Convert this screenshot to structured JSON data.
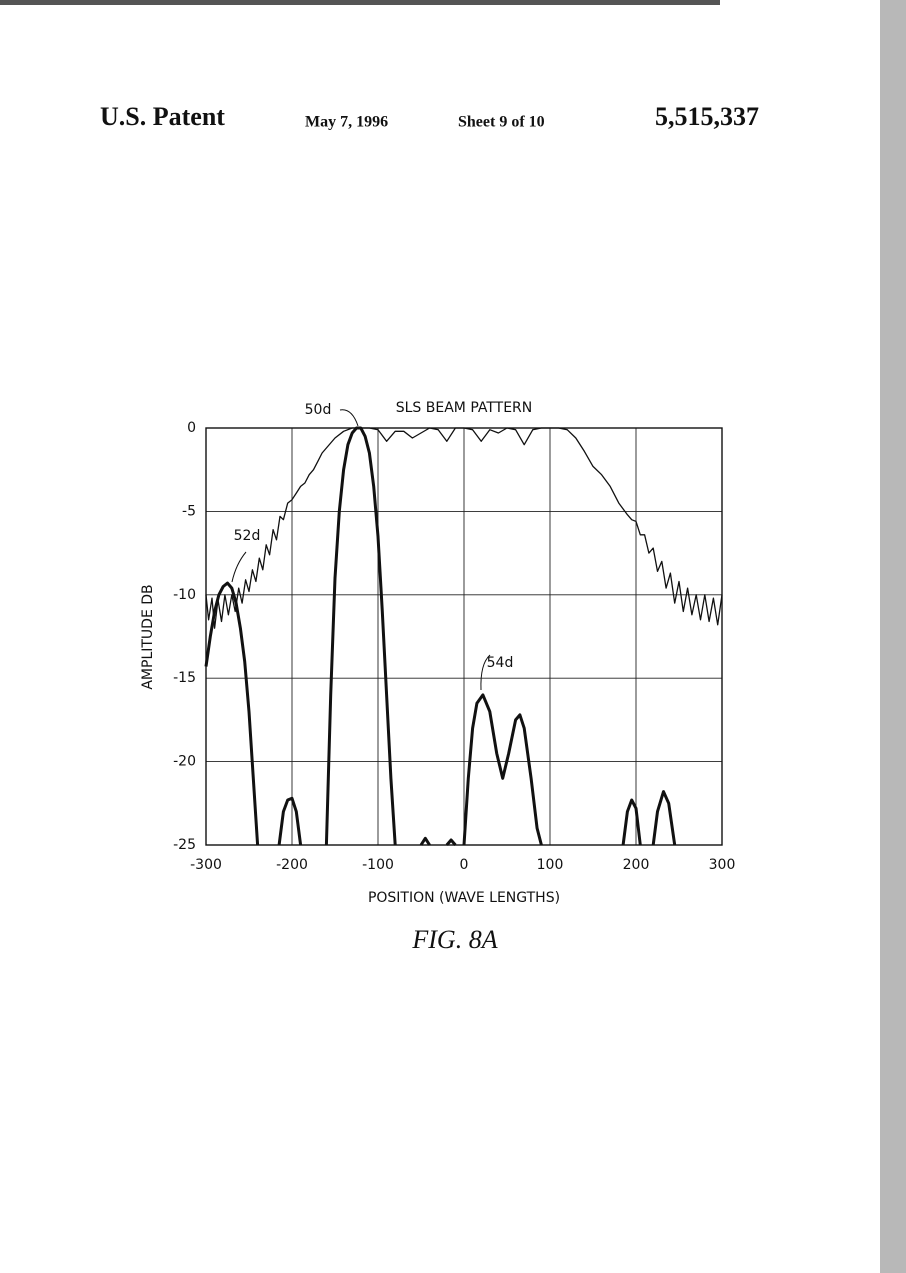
{
  "header": {
    "left": "U.S. Patent",
    "date": "May 7, 1996",
    "sheet": "Sheet 9 of 10",
    "number": "5,515,337"
  },
  "caption": "FIG. 8A",
  "chart_data": {
    "type": "line",
    "title": "SLS BEAM PATTERN",
    "xlabel": "POSITION (WAVE LENGTHS)",
    "ylabel": "AMPLITUDE DB",
    "xlim": [
      -300,
      300
    ],
    "ylim": [
      -25,
      0
    ],
    "xticks": [
      -300,
      -200,
      -100,
      0,
      100,
      200,
      300
    ],
    "yticks": [
      0,
      -5,
      -10,
      -15,
      -20,
      -25
    ],
    "grid": true,
    "annotations": [
      "50d",
      "52d",
      "54d"
    ],
    "series": [
      {
        "color": "#111111",
        "width": 1.3,
        "x": [
          -300,
          -297,
          -293,
          -290,
          -286,
          -282,
          -278,
          -274,
          -270,
          -266,
          -262,
          -258,
          -254,
          -250,
          -246,
          -242,
          -238,
          -234,
          -230,
          -226,
          -222,
          -218,
          -214,
          -210,
          -205,
          -200,
          -195,
          -190,
          -185,
          -180,
          -175,
          -170,
          -165,
          -160,
          -155,
          -150,
          -140,
          -130,
          -110,
          -100,
          -90,
          -80,
          -70,
          -60,
          -50,
          -40,
          -30,
          -20,
          -10,
          0,
          10,
          20,
          30,
          40,
          50,
          60,
          70,
          80,
          90,
          110,
          120,
          130,
          140,
          150,
          160,
          170,
          180,
          190,
          195,
          200,
          205,
          210,
          215,
          220,
          225,
          230,
          235,
          240,
          245,
          250,
          255,
          260,
          265,
          270,
          275,
          280,
          285,
          290,
          295,
          300
        ],
        "values": [
          -10,
          -11.5,
          -10.2,
          -12,
          -10.3,
          -11.6,
          -10,
          -11.2,
          -10,
          -11,
          -9.6,
          -10.5,
          -9.1,
          -9.8,
          -8.5,
          -9.2,
          -7.8,
          -8.5,
          -7,
          -7.6,
          -6.1,
          -6.7,
          -5.3,
          -5.5,
          -4.5,
          -4.3,
          -3.9,
          -3.5,
          -3.3,
          -2.8,
          -2.5,
          -2,
          -1.5,
          -1.2,
          -0.9,
          -0.6,
          -0.2,
          0,
          0,
          -0.1,
          -0.8,
          -0.2,
          -0.2,
          -0.6,
          -0.3,
          0,
          -0.1,
          -0.8,
          0,
          0,
          -0.1,
          -0.8,
          -0.1,
          -0.3,
          0,
          -0.1,
          -1,
          -0.1,
          0,
          0,
          -0.1,
          -0.6,
          -1.4,
          -2.3,
          -2.8,
          -3.5,
          -4.5,
          -5.2,
          -5.5,
          -5.6,
          -6.4,
          -6.4,
          -7.5,
          -7.2,
          -8.6,
          -8,
          -9.6,
          -8.7,
          -10.5,
          -9.2,
          -11,
          -9.6,
          -11.2,
          -10,
          -11.5,
          -10,
          -11.6,
          -10.2,
          -11.8,
          -10
        ]
      },
      {
        "color": "#111111",
        "width": 3,
        "x": [
          -300,
          -295,
          -290,
          -285,
          -280,
          -275,
          -270,
          -265,
          -260,
          -255,
          -250,
          -245,
          -240,
          -227,
          -215,
          -210,
          -205,
          -200,
          -195,
          -190,
          -175,
          -160,
          -155,
          -150,
          -145,
          -140,
          -135,
          -130,
          -125,
          -120,
          -115,
          -110,
          -105,
          -100,
          -95,
          -90,
          -85,
          -80,
          -65,
          -50,
          -45,
          -40,
          -30,
          -20,
          -15,
          -10,
          -5,
          0,
          5,
          10,
          15,
          22,
          30,
          38,
          45,
          52,
          60,
          65,
          70,
          78,
          85,
          90,
          138,
          185,
          190,
          195,
          200,
          205,
          212,
          220,
          225,
          232,
          238,
          245
        ],
        "values": [
          -14.3,
          -12.5,
          -11,
          -10,
          -9.5,
          -9.3,
          -9.6,
          -10.5,
          -12,
          -14,
          -17,
          -21,
          -25,
          null,
          -25,
          -23,
          -22.3,
          -22.2,
          -23,
          -25,
          null,
          -25,
          -16,
          -9,
          -5,
          -2.5,
          -1,
          -0.3,
          0,
          0,
          -0.5,
          -1.5,
          -3.5,
          -6.5,
          -11,
          -16,
          -21,
          -25,
          null,
          -25,
          -24.6,
          -25,
          null,
          -25,
          -24.7,
          -25,
          null,
          -25,
          -21,
          -18,
          -16.5,
          -16,
          -17,
          -19.5,
          -21,
          -19.5,
          -17.5,
          -17.2,
          -18,
          -21,
          -24,
          -25,
          null,
          -25,
          -23,
          -22.3,
          -22.8,
          -25,
          null,
          -25,
          -23,
          -21.8,
          -22.5,
          -25
        ]
      }
    ]
  }
}
